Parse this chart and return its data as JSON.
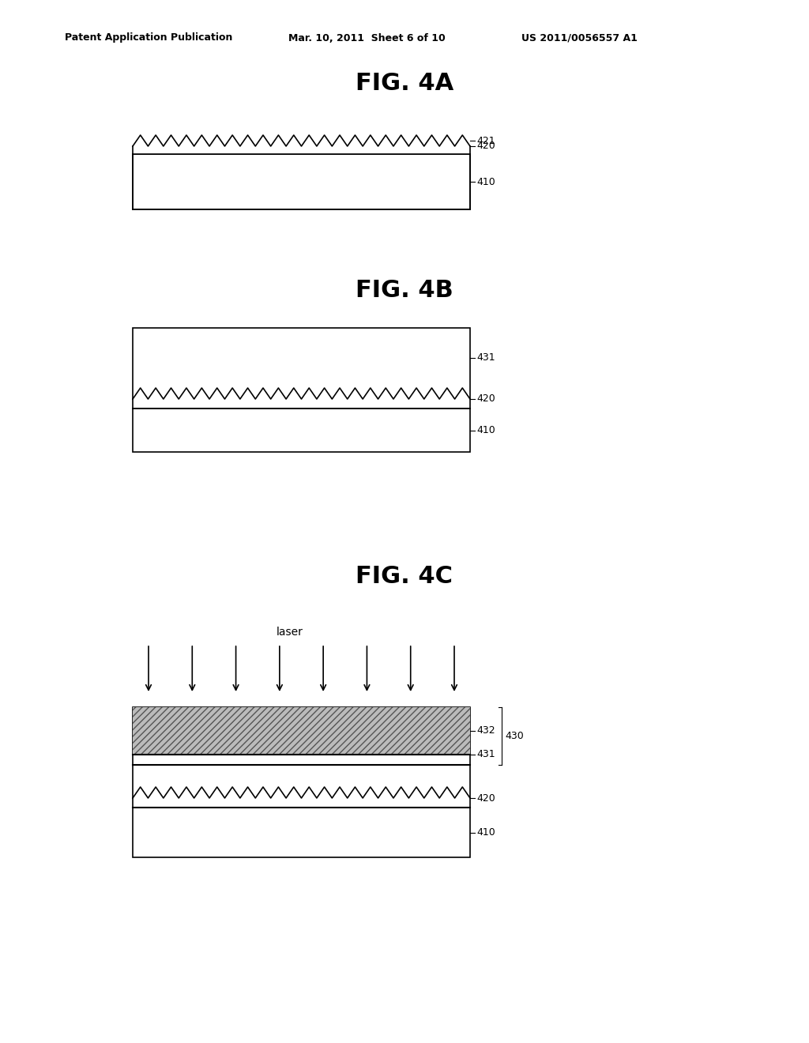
{
  "bg_color": "#ffffff",
  "header_left": "Patent Application Publication",
  "header_mid": "Mar. 10, 2011  Sheet 6 of 10",
  "header_right": "US 2011/0056557 A1",
  "fig4a_title": "FIG. 4A",
  "fig4b_title": "FIG. 4B",
  "fig4c_title": "FIG. 4C",
  "label_color": "#000000",
  "line_color": "#000000",
  "laser_label": "laser",
  "num_zigzag_teeth": 22,
  "fig4a_labels": [
    "421",
    "420",
    "410"
  ],
  "fig4b_labels": [
    "431",
    "420",
    "410"
  ],
  "fig4c_labels": [
    "432",
    "430",
    "431",
    "420",
    "410"
  ]
}
